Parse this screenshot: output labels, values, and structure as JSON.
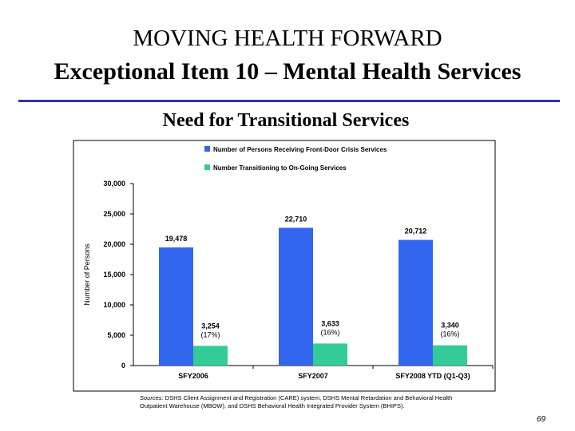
{
  "slide": {
    "title_line1": "MOVING HEALTH FORWARD",
    "title_line2": "Exceptional Item 10 – Mental Health Services",
    "subtitle": "Need for Transitional Services",
    "sources_label": "Sources:",
    "sources_text": " DSHS Client Assignment and Registration (CARE) system, DSHS Mental Retardation and Behavioral Health Outpatient Warehouse (MBOW), and DSHS Behavioral Health Integrated Provider System (BHIPS).",
    "page_number": "69",
    "rule_color": "#33339a"
  },
  "chart_data": {
    "type": "bar",
    "categories": [
      "SFY2006",
      "SFY2007",
      "SFY2008 YTD (Q1-Q3)"
    ],
    "series": [
      {
        "name": "Number of Persons Receiving Front-Door Crisis Services",
        "values": [
          19478,
          22710,
          20712
        ],
        "color": "#3366ee",
        "labels": [
          "19,478",
          "22,710",
          "20,712"
        ]
      },
      {
        "name": "Number Transitioning to On-Going Services",
        "values": [
          3254,
          3633,
          3340
        ],
        "color": "#33cc99",
        "labels": [
          [
            "3,254",
            "(17%)"
          ],
          [
            "3,633",
            "(16%)"
          ],
          [
            "3,340",
            "(16%)"
          ]
        ]
      }
    ],
    "ylabel": "Number of Persons",
    "xlabel": "",
    "ylim": [
      0,
      30000
    ],
    "yticks": [
      "0",
      "5,000",
      "10,000",
      "15,000",
      "20,000",
      "25,000",
      "30,000"
    ],
    "legend": "top",
    "grid": false
  }
}
